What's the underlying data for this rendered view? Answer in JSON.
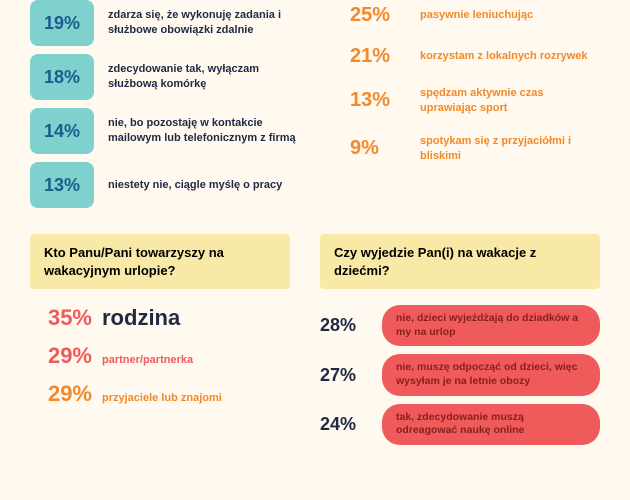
{
  "colors": {
    "bg": "#fff9f0",
    "teal_box_bg": "#7fd1cf",
    "teal_box_text": "#1a5c8a",
    "dark_text": "#1e2a44",
    "orange": "#f08a2a",
    "navy": "#1e2a44",
    "coral": "#ef5a5a",
    "coral_text": "#8a1e1e",
    "yellow_box": "#f9e9a6"
  },
  "left_stats": [
    {
      "pct": "19%",
      "text": "zdarza się, że wykonuję zadania i służbowe obowiązki zdalnie"
    },
    {
      "pct": "18%",
      "text": "zdecydowanie tak, wyłączam służbową komórkę"
    },
    {
      "pct": "14%",
      "text": "nie, bo pozostaję w kontakcie mailowym lub telefonicznym z firmą"
    },
    {
      "pct": "13%",
      "text": "niestety nie, ciągle myślę o pracy"
    }
  ],
  "right_stats": [
    {
      "pct": "25%",
      "text": "pasywnie leniuchując"
    },
    {
      "pct": "21%",
      "text": "korzystam z lokalnych rozrywek"
    },
    {
      "pct": "13%",
      "text": "spędzam aktywnie czas uprawiając sport"
    },
    {
      "pct": "9%",
      "text": "spotykam się z przyjaciółmi i bliskimi"
    }
  ],
  "q_left": {
    "question": "Kto Panu/Pani towarzyszy na wakacyjnym urlopie?",
    "answers": [
      {
        "pct": "35%",
        "text": "rodzina",
        "pct_color": "#ef5a5a",
        "text_color": "#1e2a44",
        "big": true
      },
      {
        "pct": "29%",
        "text": "partner/partnerka",
        "pct_color": "#ef5a5a",
        "text_color": "#ef5a5a",
        "big": false
      },
      {
        "pct": "29%",
        "text": "przyjaciele lub znajomi",
        "pct_color": "#f08a2a",
        "text_color": "#f08a2a",
        "big": false
      }
    ]
  },
  "q_right": {
    "question": "Czy wyjedzie Pan(i) na wakacje z dziećmi?",
    "answers": [
      {
        "pct": "28%",
        "text": "nie, dzieci wyjeżdżają do dziadków a my na urlop",
        "pct_color": "#1e2a44",
        "pill_bg": "#ef5a5a",
        "pill_text": "#8a1e1e"
      },
      {
        "pct": "27%",
        "text": "nie, muszę odpocząć od dzieci, więc wysyłam je na letnie obozy",
        "pct_color": "#1e2a44",
        "pill_bg": "#ef5a5a",
        "pill_text": "#8a1e1e"
      },
      {
        "pct": "24%",
        "text": "tak, zdecydowanie muszą odreagować naukę online",
        "pct_color": "#1e2a44",
        "pill_bg": "#ef5a5a",
        "pill_text": "#8a1e1e"
      }
    ]
  }
}
